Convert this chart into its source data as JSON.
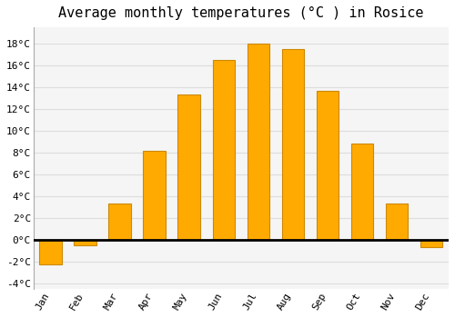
{
  "title": "Average monthly temperatures (°C ) in Rosice",
  "months": [
    "Jan",
    "Feb",
    "Mar",
    "Apr",
    "May",
    "Jun",
    "Jul",
    "Aug",
    "Sep",
    "Oct",
    "Nov",
    "Dec"
  ],
  "values": [
    -2.3,
    -0.5,
    3.3,
    8.2,
    13.3,
    16.5,
    18.0,
    17.5,
    13.7,
    8.8,
    3.3,
    -0.7
  ],
  "bar_color": "#FFAA00",
  "bar_edge_color": "#CC8800",
  "background_color": "#FFFFFF",
  "plot_bg_color": "#F5F5F5",
  "grid_color": "#DDDDDD",
  "ylim": [
    -4.5,
    19.5
  ],
  "yticks": [
    -4,
    -2,
    0,
    2,
    4,
    6,
    8,
    10,
    12,
    14,
    16,
    18
  ],
  "zero_line_color": "#000000",
  "title_fontsize": 11,
  "tick_fontsize": 8,
  "font_family": "monospace"
}
